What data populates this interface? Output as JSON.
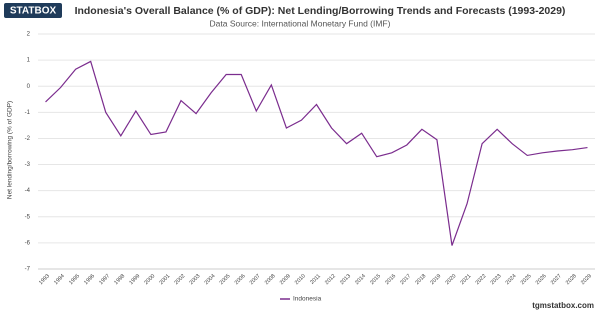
{
  "chart_data": {
    "type": "line",
    "logo": "STATBOX",
    "title": "Indonesia's Overall Balance (% of GDP): Net Lending/Borrowing Trends and Forecasts (1993-2029)",
    "subtitle": "Data Source: International Monetary Fund (IMF)",
    "y_label": "Net lending/borrowing (% of GDP)",
    "footer": "tgmstatbox.com",
    "categories": [
      "1993",
      "1994",
      "1995",
      "1996",
      "1997",
      "1998",
      "1999",
      "2000",
      "2001",
      "2002",
      "2003",
      "2004",
      "2005",
      "2006",
      "2007",
      "2008",
      "2009",
      "2010",
      "2011",
      "2012",
      "2013",
      "2014",
      "2015",
      "2016",
      "2017",
      "2018",
      "2019",
      "2020",
      "2021",
      "2022",
      "2023",
      "2024",
      "2025",
      "2026",
      "2027",
      "2028",
      "2029"
    ],
    "series": [
      {
        "name": "Indonesia",
        "color": "#7b2d8e",
        "values": [
          -0.6,
          -0.05,
          0.65,
          0.95,
          -1.0,
          -1.9,
          -0.95,
          -1.85,
          -1.75,
          -0.55,
          -1.05,
          -0.25,
          0.45,
          0.45,
          -0.95,
          0.05,
          -1.6,
          -1.3,
          -0.7,
          -1.6,
          -2.2,
          -1.8,
          -2.7,
          -2.55,
          -2.25,
          -1.65,
          -2.05,
          -6.1,
          -4.5,
          -2.2,
          -1.65,
          -2.2,
          -2.65,
          -2.55,
          -2.48,
          -2.43,
          -2.35
        ]
      }
    ],
    "ylim": [
      -7,
      2
    ],
    "yticks": [
      -7,
      -6,
      -5,
      -4,
      -3,
      -2,
      -1,
      0,
      1,
      2
    ],
    "grid": true
  }
}
